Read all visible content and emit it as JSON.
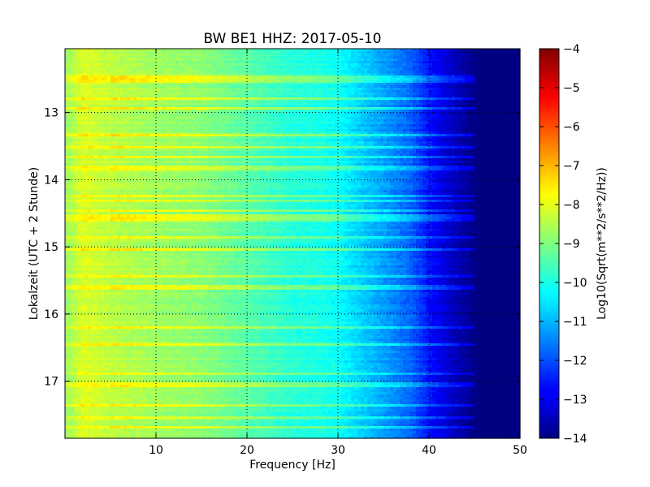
{
  "chart_data": {
    "type": "heatmap",
    "title": "BW BE1 HHZ: 2017-05-10",
    "xlabel": "Frequency [Hz]",
    "ylabel": "Lokalzeit (UTC + 2 Stunde)",
    "xlim": [
      0,
      50
    ],
    "ylim": [
      12.05,
      17.85
    ],
    "y_inverted": true,
    "grid": true,
    "x_ticks": [
      10,
      20,
      30,
      40,
      50
    ],
    "x_tick_labels": [
      "10",
      "20",
      "30",
      "40",
      "50"
    ],
    "y_ticks": [
      13,
      14,
      15,
      16,
      17
    ],
    "y_tick_labels": [
      "13",
      "14",
      "15",
      "16",
      "17"
    ],
    "colorbar": {
      "label": "Log10(Sqrt(m**2/s**2/Hz))",
      "colormap": "jet",
      "range": [
        -14,
        -4
      ],
      "ticks": [
        -4,
        -5,
        -6,
        -7,
        -8,
        -9,
        -10,
        -11,
        -12,
        -13,
        -14
      ],
      "tick_labels": [
        "−4",
        "−5",
        "−6",
        "−7",
        "−8",
        "−9",
        "−10",
        "−11",
        "−12",
        "−13",
        "−14"
      ]
    },
    "spectral_profile": {
      "frequency": [
        0,
        2,
        5,
        10,
        15,
        20,
        25,
        28,
        30,
        32,
        35,
        38,
        40,
        42,
        44,
        45,
        46,
        50
      ],
      "log_amplitude": [
        -8.8,
        -8.1,
        -8.4,
        -8.7,
        -8.9,
        -9.4,
        -9.9,
        -10.0,
        -10.2,
        -10.6,
        -11.2,
        -11.8,
        -12.6,
        -13.2,
        -13.7,
        -14.0,
        -14.0,
        -14.0
      ]
    },
    "loud_bands_hours": [
      12.47,
      12.52,
      12.8,
      12.93,
      13.35,
      13.52,
      13.65,
      13.83,
      14.25,
      14.32,
      14.45,
      14.55,
      14.6,
      14.85,
      15.03,
      15.45,
      15.6,
      16.2,
      16.45,
      16.88,
      17.05,
      17.35,
      17.55,
      17.68
    ]
  }
}
